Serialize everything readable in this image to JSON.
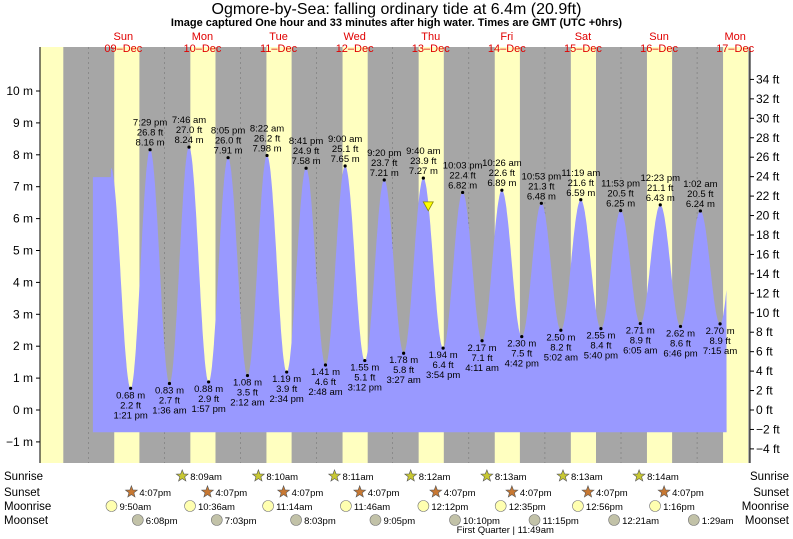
{
  "title": "Ogmore-by-Sea: falling  ordinary tide at 6.4m (20.9ft)",
  "subtitle": "Image captured One hour and 33 minutes after high water. Times are GMT (UTC +0hrs)",
  "colors": {
    "water": "#9999ff",
    "night": "#a6a6a6",
    "day": "#ffffc0",
    "day_label": "#e00000",
    "marker": "#ffff00"
  },
  "days": [
    {
      "name": "Sun",
      "date": "09–Dec"
    },
    {
      "name": "Mon",
      "date": "10–Dec"
    },
    {
      "name": "Tue",
      "date": "11–Dec"
    },
    {
      "name": "Wed",
      "date": "12–Dec"
    },
    {
      "name": "Thu",
      "date": "13–Dec"
    },
    {
      "name": "Fri",
      "date": "14–Dec"
    },
    {
      "name": "Sat",
      "date": "15–Dec"
    },
    {
      "name": "Sun",
      "date": "16–Dec"
    },
    {
      "name": "Mon",
      "date": "17–Dec"
    }
  ],
  "chart_data": {
    "type": "area",
    "title": "Ogmore-by-Sea: falling  ordinary tide at 6.4m (20.9ft)",
    "x_range_days": [
      -1.0,
      8.0
    ],
    "ylim_m": [
      -1.55,
      10.9
    ],
    "ylim_ft": [
      -5.1,
      35.8
    ],
    "y_ticks_m": [
      "−1 m",
      "0 m",
      "1 m",
      "2 m",
      "3 m",
      "4 m",
      "5 m",
      "6 m",
      "7 m",
      "8 m",
      "9 m",
      "10 m"
    ],
    "y_ticks_ft": [
      "−4 ft",
      "−2 ft",
      "0 ft",
      "2 ft",
      "4 ft",
      "6 ft",
      "8 ft",
      "10 ft",
      "12 ft",
      "14 ft",
      "16 ft",
      "18 ft",
      "20 ft",
      "22 ft",
      "24 ft",
      "26 ft",
      "28 ft",
      "30 ft",
      "32 ft",
      "34 ft"
    ],
    "current": {
      "time": "13-Dec 11:13",
      "height_m": 6.4,
      "height_ft": 20.9
    },
    "tides": [
      {
        "type": "low",
        "time": "1:21 pm",
        "ft": "2.2 ft",
        "m": 0.68,
        "label_m": "0.68 m",
        "day": 0
      },
      {
        "type": "high",
        "time": "7:29 pm",
        "ft": "26.8 ft",
        "m": 8.16,
        "label_m": "8.16 m",
        "day": 0
      },
      {
        "type": "low",
        "time": "1:36 am",
        "ft": "2.7 ft",
        "m": 0.83,
        "label_m": "0.83 m",
        "day": 1
      },
      {
        "type": "high",
        "time": "7:46 am",
        "ft": "27.0 ft",
        "m": 8.24,
        "label_m": "8.24 m",
        "day": 1
      },
      {
        "type": "low",
        "time": "1:57 pm",
        "ft": "2.9 ft",
        "m": 0.88,
        "label_m": "0.88 m",
        "day": 1
      },
      {
        "type": "high",
        "time": "8:05 pm",
        "ft": "26.0 ft",
        "m": 7.91,
        "label_m": "7.91 m",
        "day": 1
      },
      {
        "type": "low",
        "time": "2:12 am",
        "ft": "3.5 ft",
        "m": 1.08,
        "label_m": "1.08 m",
        "day": 2
      },
      {
        "type": "high",
        "time": "8:22 am",
        "ft": "26.2 ft",
        "m": 7.98,
        "label_m": "7.98 m",
        "day": 2
      },
      {
        "type": "low",
        "time": "2:34 pm",
        "ft": "3.9 ft",
        "m": 1.19,
        "label_m": "1.19 m",
        "day": 2
      },
      {
        "type": "high",
        "time": "8:41 pm",
        "ft": "24.9 ft",
        "m": 7.58,
        "label_m": "7.58 m",
        "day": 2
      },
      {
        "type": "low",
        "time": "2:48 am",
        "ft": "4.6 ft",
        "m": 1.41,
        "label_m": "1.41 m",
        "day": 3
      },
      {
        "type": "high",
        "time": "9:00 am",
        "ft": "25.1 ft",
        "m": 7.65,
        "label_m": "7.65 m",
        "day": 3
      },
      {
        "type": "low",
        "time": "3:12 pm",
        "ft": "5.1 ft",
        "m": 1.55,
        "label_m": "1.55 m",
        "day": 3
      },
      {
        "type": "high",
        "time": "9:20 pm",
        "ft": "23.7 ft",
        "m": 7.21,
        "label_m": "7.21 m",
        "day": 3
      },
      {
        "type": "low",
        "time": "3:27 am",
        "ft": "5.8 ft",
        "m": 1.78,
        "label_m": "1.78 m",
        "day": 4
      },
      {
        "type": "high",
        "time": "9:40 am",
        "ft": "23.9 ft",
        "m": 7.27,
        "label_m": "7.27 m",
        "day": 4
      },
      {
        "type": "low",
        "time": "3:54 pm",
        "ft": "6.4 ft",
        "m": 1.94,
        "label_m": "1.94 m",
        "day": 4
      },
      {
        "type": "high",
        "time": "10:03 pm",
        "ft": "22.4 ft",
        "m": 6.82,
        "label_m": "6.82 m",
        "day": 4
      },
      {
        "type": "low",
        "time": "4:11 am",
        "ft": "7.1 ft",
        "m": 2.17,
        "label_m": "2.17 m",
        "day": 5
      },
      {
        "type": "high",
        "time": "10:26 am",
        "ft": "22.6 ft",
        "m": 6.89,
        "label_m": "6.89 m",
        "day": 5
      },
      {
        "type": "low",
        "time": "4:42 pm",
        "ft": "7.5 ft",
        "m": 2.3,
        "label_m": "2.30 m",
        "day": 5
      },
      {
        "type": "high",
        "time": "10:53 pm",
        "ft": "21.3 ft",
        "m": 6.48,
        "label_m": "6.48 m",
        "day": 5
      },
      {
        "type": "low",
        "time": "5:02 am",
        "ft": "8.2 ft",
        "m": 2.5,
        "label_m": "2.50 m",
        "day": 6
      },
      {
        "type": "high",
        "time": "11:19 am",
        "ft": "21.6 ft",
        "m": 6.59,
        "label_m": "6.59 m",
        "day": 6
      },
      {
        "type": "low",
        "time": "5:40 pm",
        "ft": "8.4 ft",
        "m": 2.55,
        "label_m": "2.55 m",
        "day": 6
      },
      {
        "type": "high",
        "time": "11:53 pm",
        "ft": "20.5 ft",
        "m": 6.25,
        "label_m": "6.25 m",
        "day": 6
      },
      {
        "type": "low",
        "time": "6:05 am",
        "ft": "8.9 ft",
        "m": 2.71,
        "label_m": "2.71 m",
        "day": 7
      },
      {
        "type": "high",
        "time": "12:23 pm",
        "ft": "21.1 ft",
        "m": 6.43,
        "label_m": "6.43 m",
        "day": 7
      },
      {
        "type": "low",
        "time": "6:46 pm",
        "ft": "8.6 ft",
        "m": 2.62,
        "label_m": "2.62 m",
        "day": 7
      },
      {
        "type": "high",
        "time": "1:02 am",
        "ft": "20.5 ft",
        "m": 6.24,
        "label_m": "6.24 m",
        "day": 8
      },
      {
        "type": "low",
        "time": "7:15 am",
        "ft": "8.9 ft",
        "m": 2.7,
        "label_m": "2.70 m",
        "day": 8
      }
    ]
  },
  "rows": {
    "sunrise_label": "Sunrise",
    "sunset_label": "Sunset",
    "moonrise_label": "Moonrise",
    "moonset_label": "Moonset",
    "sunrise": [
      "8:09am",
      "8:10am",
      "8:11am",
      "8:12am",
      "8:13am",
      "8:13am",
      "8:14am"
    ],
    "sunset": [
      "4:07pm",
      "4:07pm",
      "4:07pm",
      "4:07pm",
      "4:07pm",
      "4:07pm",
      "4:07pm",
      "4:07pm"
    ],
    "moonrise": [
      "9:50am",
      "10:36am",
      "11:14am",
      "11:46am",
      "12:12pm",
      "12:35pm",
      "12:56pm",
      "1:16pm"
    ],
    "moonset": [
      "6:08pm",
      "7:03pm",
      "8:03pm",
      "9:05pm",
      "10:10pm",
      "11:15pm",
      "12:21am",
      "1:29am"
    ],
    "moon_phase": "First Quarter | 11:49am"
  }
}
